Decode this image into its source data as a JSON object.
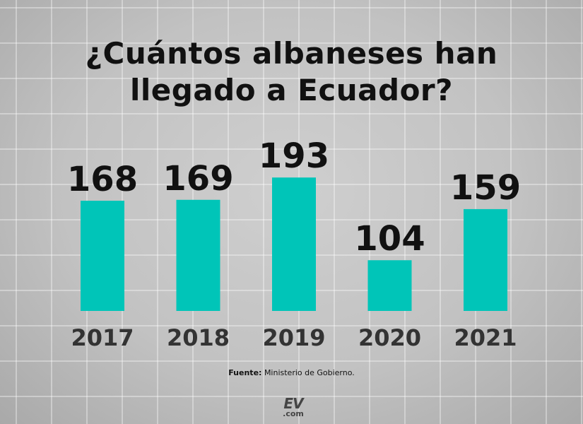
{
  "chart_data": {
    "type": "bar",
    "title": "¿Cuántos albaneses han llegado a Ecuador?",
    "title_lines": [
      "¿Cuántos albaneses han",
      "llegado a Ecuador?"
    ],
    "categories": [
      "2017",
      "2018",
      "2019",
      "2020",
      "2021"
    ],
    "values": [
      168,
      169,
      193,
      104,
      159
    ],
    "xlabel": "",
    "ylabel": "",
    "bar_color": "#00c5b8",
    "grid": false,
    "legend": "none"
  },
  "source": {
    "label": "Fuente:",
    "text": "Ministerio de Gobierno."
  },
  "logo": {
    "top": "EV",
    "bottom": ".com"
  }
}
